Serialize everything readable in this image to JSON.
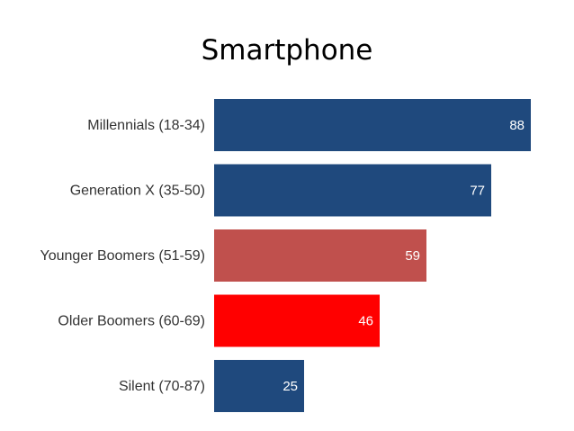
{
  "chart_data": {
    "type": "bar",
    "orientation": "horizontal",
    "title": "Smartphone",
    "categories": [
      "Millennials (18-34)",
      "Generation X (35-50)",
      "Younger Boomers (51-59)",
      "Older Boomers (60-69)",
      "Silent (70-87)"
    ],
    "values": [
      88,
      77,
      59,
      46,
      25
    ],
    "colors": [
      "#1F497D",
      "#1F497D",
      "#C0504D",
      "#FF0000",
      "#1F497D"
    ],
    "data_labels": [
      "88",
      "77",
      "59",
      "46",
      "25"
    ],
    "xlim": [
      0,
      88
    ],
    "grid": false,
    "legend": "none"
  }
}
